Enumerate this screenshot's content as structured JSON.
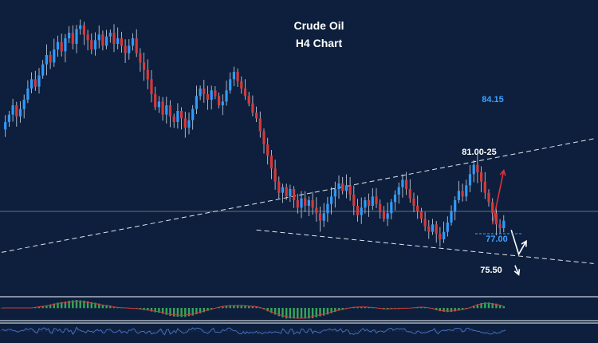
{
  "chart_data": {
    "type": "candlestick",
    "title": "Crude Oil",
    "subtitle": "H4 Chart",
    "y_range_estimate": [
      73.5,
      88.5
    ],
    "colors": {
      "background": "#0d1f3c",
      "bull": "#2e9bff",
      "bear": "#d43a3a",
      "wick": "#d0d8e8",
      "forecast_up": "#e0303a",
      "forecast_down": "#ffffff",
      "label_main": "#ffffff",
      "label_accent": "#3ea0ff",
      "hist_positive": "#3fbf5f",
      "hist_negative": "#3fbf5f",
      "signal_line": "#d43a3a",
      "osc_line": "#4a78d0"
    },
    "closes": [
      82.4,
      82.8,
      83.2,
      83.7,
      83.1,
      83.5,
      84.0,
      84.6,
      85.1,
      84.7,
      85.3,
      85.9,
      86.4,
      86.0,
      86.7,
      87.1,
      86.6,
      87.3,
      87.6,
      87.0,
      87.8,
      88.0,
      87.5,
      87.2,
      86.7,
      87.2,
      87.5,
      86.9,
      87.4,
      87.6,
      87.0,
      87.3,
      86.9,
      86.5,
      86.9,
      87.3,
      86.5,
      86.0,
      85.6,
      85.1,
      84.3,
      83.6,
      83.9,
      83.2,
      83.7,
      83.1,
      82.8,
      83.4,
      83.0,
      82.5,
      82.9,
      83.5,
      84.2,
      84.6,
      84.3,
      84.0,
      84.5,
      84.2,
      83.7,
      83.9,
      84.5,
      85.1,
      85.5,
      85.0,
      84.6,
      84.2,
      83.8,
      83.3,
      83.0,
      82.3,
      81.6,
      81.0,
      80.3,
      79.6,
      79.0,
      79.3,
      78.8,
      79.2,
      78.6,
      78.2,
      78.7,
      78.3,
      78.6,
      78.2,
      77.9,
      77.5,
      77.9,
      78.4,
      78.8,
      79.2,
      79.5,
      79.1,
      79.4,
      78.9,
      78.3,
      77.8,
      78.2,
      78.6,
      78.3,
      78.8,
      78.4,
      78.0,
      77.6,
      77.9,
      78.5,
      78.9,
      79.3,
      79.7,
      79.2,
      78.7,
      78.3,
      78.0,
      77.6,
      77.2,
      76.9,
      77.3,
      76.8,
      76.5,
      76.9,
      77.4,
      78.0,
      78.6,
      79.1,
      78.8,
      79.4,
      80.0,
      80.5,
      80.1,
      79.6,
      79.0,
      78.5,
      77.9,
      77.3,
      77.1,
      77.5
    ],
    "levels": [
      {
        "label": "84.15",
        "value": 84.15
      },
      {
        "label": "81.00-25",
        "value": 81.1
      },
      {
        "label": "77.00",
        "value": 77.0
      },
      {
        "label": "75.50",
        "value": 75.5
      }
    ],
    "horizontal_line": 78.0,
    "trendlines": [
      {
        "role": "upper channel",
        "style": "dashed",
        "from": {
          "bar": 0,
          "price": 75.8
        },
        "to": {
          "bar": 158,
          "price": 81.9
        }
      },
      {
        "role": "lower channel",
        "style": "dashed",
        "from": {
          "bar": 68,
          "price": 77.0
        },
        "to": {
          "bar": 158,
          "price": 75.2
        }
      }
    ],
    "forecast_arrows": [
      {
        "direction": "up",
        "from": {
          "bar": 131,
          "price": 77.3
        },
        "to": {
          "bar": 134,
          "price": 80.2
        }
      },
      {
        "direction": "down-then-up",
        "points": [
          {
            "bar": 136,
            "price": 77.0
          },
          {
            "bar": 138,
            "price": 75.7
          },
          {
            "bar": 140,
            "price": 76.4
          }
        ]
      },
      {
        "direction": "down",
        "from": {
          "bar": 137,
          "price": 75.1
        },
        "to": {
          "bar": 138,
          "price": 74.6
        }
      }
    ],
    "indicator_panels": [
      {
        "kind": "histogram"
      },
      {
        "kind": "oscillator"
      }
    ]
  }
}
